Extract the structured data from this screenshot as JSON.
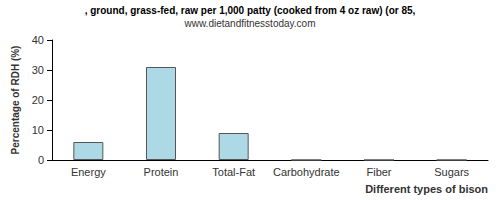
{
  "chart_data": {
    "type": "bar",
    "title": ", ground, grass-fed, raw per 1,000 patty (cooked from 4 oz raw) (or 85,",
    "subtitle": "www.dietandfitnesstoday.com",
    "x_label": "Different types of bison",
    "y_label": "Percentage of RDH (%)",
    "categories": [
      "Energy",
      "Protein",
      "Total-Fat",
      "Carbohydrate",
      "Fiber",
      "Sugars"
    ],
    "values": [
      6,
      31,
      9,
      0,
      0,
      0
    ],
    "color": "#add8e6",
    "ylim": [
      0,
      40
    ],
    "yticks": [
      0,
      10,
      20,
      30,
      40
    ],
    "grid": false
  }
}
